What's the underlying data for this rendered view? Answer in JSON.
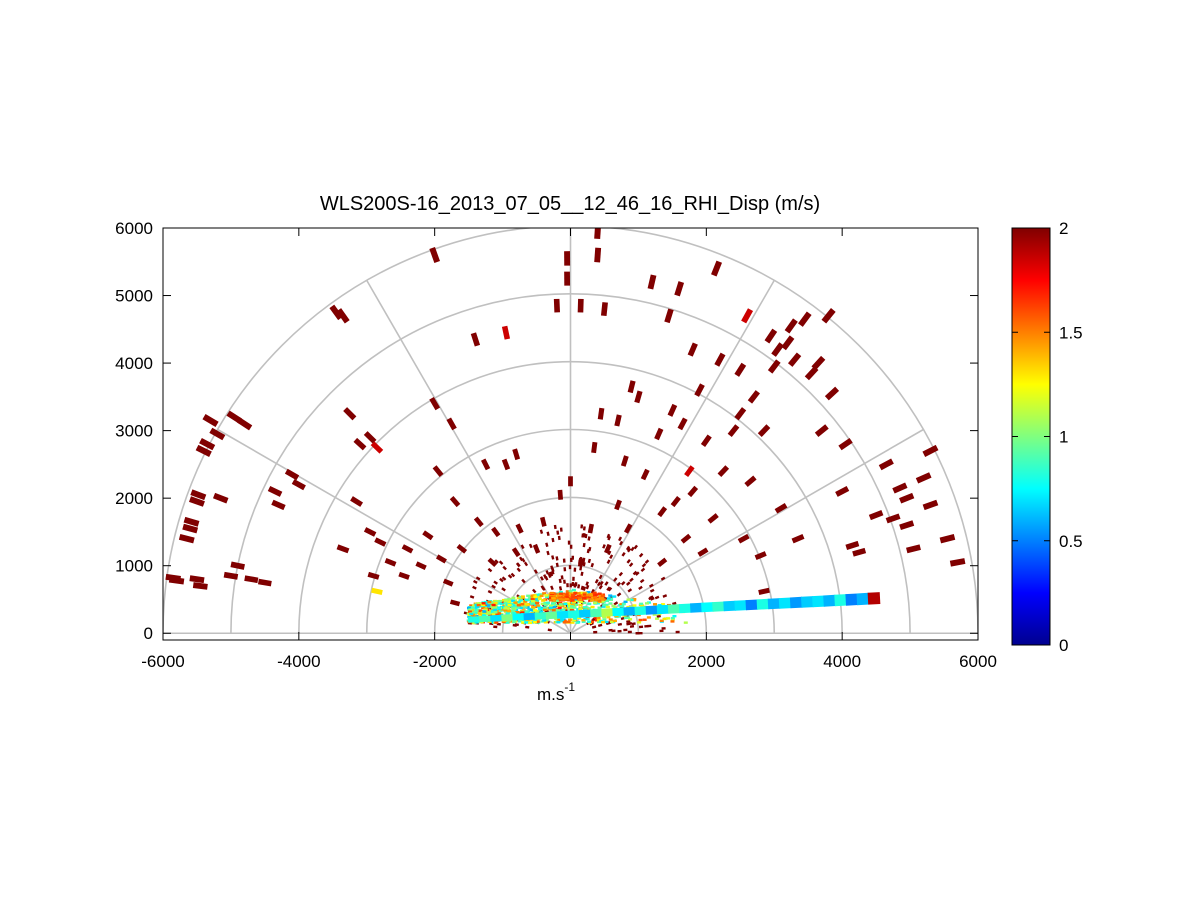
{
  "chart_data": {
    "type": "scatter",
    "title": "WLS200S-16_2013_07_05__12_46_16_RHI_Disp (m/s)",
    "xlabel_base": "m.s",
    "xlabel_exp": "-1",
    "ylabel": "",
    "xlim": [
      -6000,
      6000
    ],
    "ylim": [
      -100,
      6000
    ],
    "xticks": [
      -6000,
      -4000,
      -2000,
      0,
      2000,
      4000,
      6000
    ],
    "yticks": [
      0,
      1000,
      2000,
      3000,
      4000,
      5000,
      6000
    ],
    "xtick_labels": [
      "-6000",
      "-4000",
      "-2000",
      "0",
      "2000",
      "4000",
      "6000"
    ],
    "ytick_labels": [
      "0",
      "1000",
      "2000",
      "3000",
      "4000",
      "5000",
      "6000"
    ],
    "polar_grid": {
      "radii": [
        1000,
        2000,
        3000,
        4000,
        5000,
        6000
      ],
      "angles_deg": [
        0,
        30,
        60,
        90,
        120,
        150,
        180
      ]
    },
    "colorbar": {
      "min": 0,
      "max": 2,
      "ticks": [
        0,
        0.5,
        1,
        1.5,
        2
      ],
      "tick_labels": [
        "0",
        "0.5",
        "1",
        "1.5",
        "2"
      ],
      "colormap": "jet"
    },
    "points": [
      [
        -5850,
        820,
        2
      ],
      [
        -5800,
        780,
        2
      ],
      [
        -5650,
        1400,
        2
      ],
      [
        -5600,
        1550,
        2
      ],
      [
        -5580,
        1650,
        2
      ],
      [
        -5500,
        1950,
        2
      ],
      [
        -5480,
        2050,
        2
      ],
      [
        -5500,
        800,
        2
      ],
      [
        -5450,
        700,
        2
      ],
      [
        -5400,
        2700,
        2
      ],
      [
        -5350,
        2800,
        2
      ],
      [
        -5300,
        3150,
        2
      ],
      [
        -5200,
        2950,
        2
      ],
      [
        -5150,
        2000,
        2
      ],
      [
        -5000,
        850,
        2
      ],
      [
        -4900,
        1000,
        2
      ],
      [
        -4950,
        3200,
        2
      ],
      [
        -4800,
        3100,
        2
      ],
      [
        -4700,
        800,
        2
      ],
      [
        -4500,
        750,
        2
      ],
      [
        -4350,
        2100,
        2
      ],
      [
        -4300,
        1900,
        2
      ],
      [
        -4100,
        2350,
        2
      ],
      [
        -4000,
        2200,
        2
      ],
      [
        -3450,
        4750,
        2
      ],
      [
        -3350,
        4700,
        2
      ],
      [
        -3350,
        1250,
        2
      ],
      [
        -3250,
        3250,
        2
      ],
      [
        -3150,
        1950,
        2
      ],
      [
        -3100,
        2800,
        2
      ],
      [
        -2950,
        2900,
        2
      ],
      [
        -2950,
        1500,
        2
      ],
      [
        -2900,
        850,
        2
      ],
      [
        -2850,
        2750,
        1.85
      ],
      [
        -2850,
        620,
        1.3
      ],
      [
        -2800,
        1350,
        2
      ],
      [
        -2650,
        1050,
        2
      ],
      [
        -2450,
        850,
        2
      ],
      [
        -2400,
        1250,
        2
      ],
      [
        -2200,
        1000,
        2
      ],
      [
        -2100,
        1450,
        2
      ],
      [
        -2000,
        3400,
        2
      ],
      [
        -2000,
        5600,
        2
      ],
      [
        -1950,
        2400,
        2
      ],
      [
        -1900,
        1100,
        2
      ],
      [
        -1800,
        750,
        2
      ],
      [
        -1750,
        3100,
        2
      ],
      [
        -1700,
        1950,
        2
      ],
      [
        -1700,
        450,
        2
      ],
      [
        -1600,
        1250,
        2
      ],
      [
        -1400,
        4350,
        2
      ],
      [
        -1350,
        1650,
        2
      ],
      [
        -1250,
        2500,
        2
      ],
      [
        -1150,
        1050,
        2
      ],
      [
        -1100,
        1500,
        2
      ],
      [
        -950,
        4450,
        1.85
      ],
      [
        -950,
        2500,
        2
      ],
      [
        -800,
        1200,
        2
      ],
      [
        -750,
        1550,
        2
      ],
      [
        -800,
        2650,
        2
      ],
      [
        -500,
        1250,
        2
      ],
      [
        -400,
        1650,
        2
      ],
      [
        -200,
        4850,
        2
      ],
      [
        -150,
        2050,
        2
      ],
      [
        -50,
        5550,
        2
      ],
      [
        -50,
        5250,
        2
      ],
      [
        0,
        2250,
        2
      ],
      [
        150,
        4850,
        2
      ],
      [
        150,
        1050,
        2
      ],
      [
        300,
        1550,
        2
      ],
      [
        350,
        2750,
        2
      ],
      [
        400,
        5950,
        2
      ],
      [
        400,
        5600,
        2
      ],
      [
        450,
        3250,
        2
      ],
      [
        500,
        4800,
        2
      ],
      [
        550,
        1250,
        2
      ],
      [
        700,
        1900,
        2
      ],
      [
        700,
        3150,
        2
      ],
      [
        800,
        2550,
        2
      ],
      [
        850,
        1550,
        2
      ],
      [
        900,
        3650,
        2
      ],
      [
        1000,
        3500,
        2
      ],
      [
        1100,
        2350,
        2
      ],
      [
        1200,
        5200,
        2
      ],
      [
        1300,
        2950,
        2
      ],
      [
        1350,
        1800,
        2
      ],
      [
        1350,
        1050,
        2
      ],
      [
        1450,
        4700,
        2
      ],
      [
        1500,
        3300,
        2
      ],
      [
        1550,
        1950,
        2
      ],
      [
        1650,
        3100,
        2
      ],
      [
        1600,
        5100,
        2
      ],
      [
        1700,
        1400,
        2
      ],
      [
        1750,
        2400,
        1.85
      ],
      [
        1800,
        2100,
        2
      ],
      [
        1800,
        4200,
        2
      ],
      [
        1900,
        3600,
        2
      ],
      [
        1950,
        1200,
        2
      ],
      [
        2000,
        2850,
        2
      ],
      [
        2100,
        1700,
        2
      ],
      [
        2150,
        5400,
        2
      ],
      [
        2200,
        4050,
        2
      ],
      [
        2250,
        2400,
        2
      ],
      [
        2400,
        3000,
        2
      ],
      [
        2500,
        3900,
        2
      ],
      [
        2500,
        3250,
        2
      ],
      [
        2550,
        1400,
        2
      ],
      [
        2600,
        4700,
        1.85
      ],
      [
        2650,
        2250,
        2
      ],
      [
        2700,
        3500,
        2
      ],
      [
        2800,
        1150,
        2
      ],
      [
        2850,
        3000,
        2
      ],
      [
        2850,
        620,
        2
      ],
      [
        2950,
        4400,
        2
      ],
      [
        3000,
        3950,
        2
      ],
      [
        3050,
        4200,
        2
      ],
      [
        3100,
        1850,
        2
      ],
      [
        3200,
        4300,
        2
      ],
      [
        3250,
        4550,
        2
      ],
      [
        3300,
        4050,
        2
      ],
      [
        3350,
        1400,
        2
      ],
      [
        3450,
        4650,
        2
      ],
      [
        3550,
        3850,
        2
      ],
      [
        3650,
        4000,
        2
      ],
      [
        3700,
        3000,
        2
      ],
      [
        3800,
        4700,
        2
      ],
      [
        3850,
        3550,
        2
      ],
      [
        4000,
        2100,
        2
      ],
      [
        4050,
        2800,
        2
      ],
      [
        4150,
        1300,
        2
      ],
      [
        4250,
        1200,
        2
      ],
      [
        4500,
        1750,
        2
      ],
      [
        4650,
        2500,
        2
      ],
      [
        4750,
        1700,
        2
      ],
      [
        4850,
        2150,
        2
      ],
      [
        4950,
        1600,
        2
      ],
      [
        4950,
        2000,
        2
      ],
      [
        5050,
        1250,
        2
      ],
      [
        5200,
        2300,
        2
      ],
      [
        5300,
        1900,
        2
      ],
      [
        5300,
        2700,
        2
      ],
      [
        5550,
        1400,
        2
      ],
      [
        5700,
        1050,
        2
      ]
    ],
    "near_scan": {
      "center": [
        0,
        0
      ],
      "r_max": 1600,
      "value": 2
    },
    "low_beam": {
      "from": [
        -1500,
        200
      ],
      "to": [
        4550,
        520
      ],
      "values": [
        0.8,
        0.9,
        0.7,
        1.0,
        0.75,
        0.6,
        0.85,
        0.95,
        0.7,
        0.8,
        0.65,
        0.9,
        1.1,
        0.75,
        0.6,
        0.8,
        0.55,
        0.7,
        0.9,
        0.8,
        0.6,
        0.75,
        0.85,
        0.65,
        0.7,
        0.5,
        0.8,
        0.6,
        0.7,
        0.55,
        0.65,
        0.7,
        0.6,
        0.8,
        0.5,
        0.6,
        1.9
      ]
    },
    "core_cluster": {
      "values": [
        1.2,
        0.8,
        1.4,
        0.9,
        1.3,
        0.7,
        1.6,
        1.1,
        0.8,
        1.5,
        0.9,
        1.3,
        0.6,
        1.0,
        1.2,
        0.85,
        1.7,
        0.95,
        1.1,
        0.75,
        1.45,
        0.9,
        1.25,
        0.7,
        1.05,
        1.35,
        0.8,
        1.55,
        0.95,
        1.15
      ]
    }
  }
}
